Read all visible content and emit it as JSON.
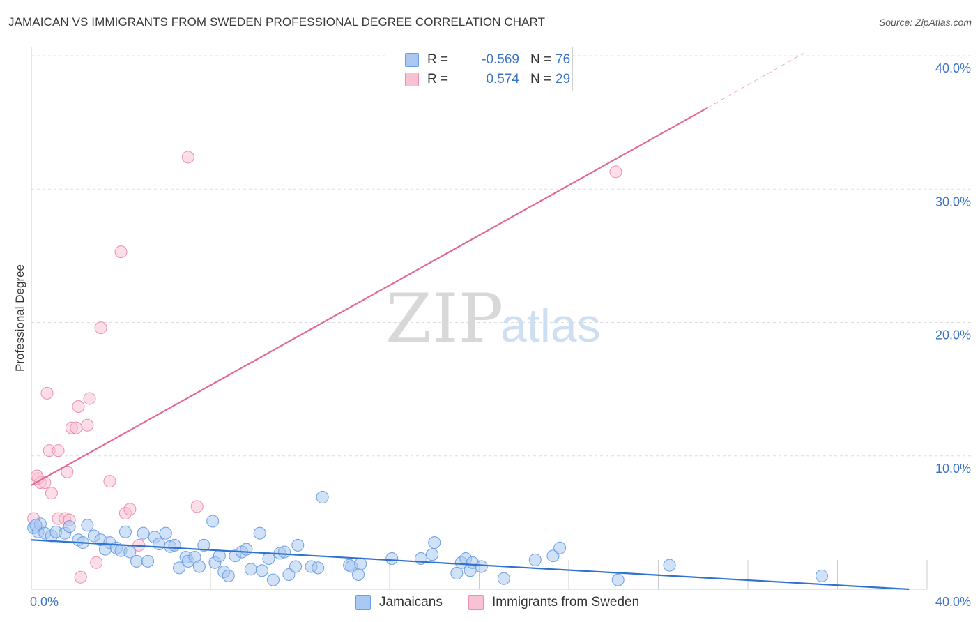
{
  "title": "JAMAICAN VS IMMIGRANTS FROM SWEDEN PROFESSIONAL DEGREE CORRELATION CHART",
  "source": "Source: ZipAtlas.com",
  "watermark": {
    "zip": "ZIP",
    "atlas": "atlas"
  },
  "legend": {
    "rows": [
      {
        "r_label": "R =",
        "r_value": "-0.569",
        "n_label": "N =",
        "n_value": "76",
        "color": "#a9c9f2",
        "border": "#6c9fe0"
      },
      {
        "r_label": "R =",
        "r_value": "0.574",
        "n_label": "N =",
        "n_value": "29",
        "color": "#f8c2d3",
        "border": "#ec8fae"
      }
    ]
  },
  "bottom_legend": {
    "jamaicans": "Jamaicans",
    "sweden": "Immigrants from Sweden"
  },
  "chart_data": {
    "type": "scatter",
    "xlabel": "",
    "ylabel": "Professional Degree",
    "xlim": [
      0,
      40
    ],
    "ylim": [
      0,
      40
    ],
    "x_tick_labels": [
      "0.0%",
      "40.0%"
    ],
    "y_ticks": [
      10,
      20,
      30,
      40
    ],
    "y_tick_labels": [
      "10.0%",
      "20.0%",
      "30.0%",
      "40.0%"
    ],
    "colors": {
      "jamaicans": "#6c9fe0",
      "jamaicans_fill": "#a9c9f2",
      "sweden": "#ec8fae",
      "sweden_fill": "#f8c2d3",
      "jam_line": "#2f72d0",
      "swe_line": "#e3679a"
    },
    "series": [
      {
        "name": "Jamaicans",
        "points": [
          [
            0.1,
            4.6
          ],
          [
            0.3,
            4.3
          ],
          [
            0.4,
            4.9
          ],
          [
            0.6,
            4.2
          ],
          [
            0.9,
            4.0
          ],
          [
            1.1,
            4.3
          ],
          [
            1.5,
            4.2
          ],
          [
            1.7,
            4.7
          ],
          [
            2.1,
            3.7
          ],
          [
            2.3,
            3.5
          ],
          [
            2.5,
            4.8
          ],
          [
            2.8,
            4.0
          ],
          [
            3.1,
            3.7
          ],
          [
            3.3,
            3.0
          ],
          [
            3.5,
            3.5
          ],
          [
            3.8,
            3.1
          ],
          [
            4.0,
            2.9
          ],
          [
            4.2,
            4.3
          ],
          [
            4.4,
            2.8
          ],
          [
            4.7,
            2.1
          ],
          [
            5.0,
            4.2
          ],
          [
            5.2,
            2.1
          ],
          [
            5.5,
            3.9
          ],
          [
            5.7,
            3.4
          ],
          [
            6.0,
            4.2
          ],
          [
            6.2,
            3.2
          ],
          [
            6.4,
            3.3
          ],
          [
            6.6,
            1.6
          ],
          [
            6.9,
            2.4
          ],
          [
            7.0,
            2.1
          ],
          [
            7.3,
            2.4
          ],
          [
            7.5,
            1.7
          ],
          [
            7.7,
            3.3
          ],
          [
            8.1,
            5.1
          ],
          [
            8.2,
            2.0
          ],
          [
            8.4,
            2.5
          ],
          [
            8.6,
            1.3
          ],
          [
            8.8,
            1.0
          ],
          [
            9.1,
            2.5
          ],
          [
            9.4,
            2.8
          ],
          [
            9.6,
            3.0
          ],
          [
            9.8,
            1.5
          ],
          [
            10.2,
            4.2
          ],
          [
            10.3,
            1.4
          ],
          [
            10.6,
            2.3
          ],
          [
            10.8,
            0.7
          ],
          [
            11.1,
            2.7
          ],
          [
            11.3,
            2.8
          ],
          [
            11.5,
            1.1
          ],
          [
            11.8,
            1.7
          ],
          [
            11.9,
            3.3
          ],
          [
            12.5,
            1.7
          ],
          [
            12.8,
            1.6
          ],
          [
            13.0,
            6.9
          ],
          [
            14.2,
            1.8
          ],
          [
            14.3,
            1.7
          ],
          [
            14.6,
            1.1
          ],
          [
            14.7,
            1.9
          ],
          [
            16.1,
            2.3
          ],
          [
            17.4,
            2.3
          ],
          [
            17.9,
            2.6
          ],
          [
            18.0,
            3.5
          ],
          [
            19.0,
            1.2
          ],
          [
            19.2,
            2.0
          ],
          [
            19.4,
            2.3
          ],
          [
            19.6,
            1.4
          ],
          [
            19.7,
            2.0
          ],
          [
            20.1,
            1.7
          ],
          [
            21.1,
            0.8
          ],
          [
            22.5,
            2.2
          ],
          [
            23.3,
            2.5
          ],
          [
            23.6,
            3.1
          ],
          [
            26.2,
            0.7
          ],
          [
            28.5,
            1.8
          ],
          [
            35.3,
            1.0
          ],
          [
            0.2,
            4.8
          ]
        ]
      },
      {
        "name": "Immigrants from Sweden",
        "points": [
          [
            0.1,
            5.3
          ],
          [
            0.3,
            8.3
          ],
          [
            0.4,
            8.0
          ],
          [
            0.6,
            8.0
          ],
          [
            0.7,
            14.7
          ],
          [
            0.8,
            10.4
          ],
          [
            0.9,
            7.2
          ],
          [
            1.2,
            5.3
          ],
          [
            1.2,
            10.4
          ],
          [
            1.5,
            5.3
          ],
          [
            1.6,
            8.8
          ],
          [
            1.7,
            5.2
          ],
          [
            1.8,
            12.1
          ],
          [
            2.0,
            12.1
          ],
          [
            2.1,
            13.7
          ],
          [
            2.2,
            0.9
          ],
          [
            2.5,
            12.3
          ],
          [
            2.6,
            14.3
          ],
          [
            2.9,
            2.0
          ],
          [
            3.1,
            19.6
          ],
          [
            3.5,
            8.1
          ],
          [
            4.0,
            25.3
          ],
          [
            4.2,
            5.7
          ],
          [
            4.4,
            6.0
          ],
          [
            4.8,
            3.3
          ],
          [
            7.0,
            32.4
          ],
          [
            7.4,
            6.2
          ],
          [
            0.25,
            8.5
          ],
          [
            26.1,
            31.3
          ]
        ]
      }
    ],
    "trendlines": [
      {
        "series": "Jamaicans",
        "from": [
          0,
          3.7
        ],
        "to": [
          39.2,
          0
        ],
        "style": "solid"
      },
      {
        "series": "Immigrants from Sweden",
        "from": [
          0,
          7.8
        ],
        "to": [
          30.2,
          36.1
        ],
        "style": "solid"
      },
      {
        "series": "Immigrants from Sweden",
        "from": [
          30.2,
          36.1
        ],
        "to": [
          34.5,
          40.2
        ],
        "style": "dashed"
      }
    ]
  }
}
